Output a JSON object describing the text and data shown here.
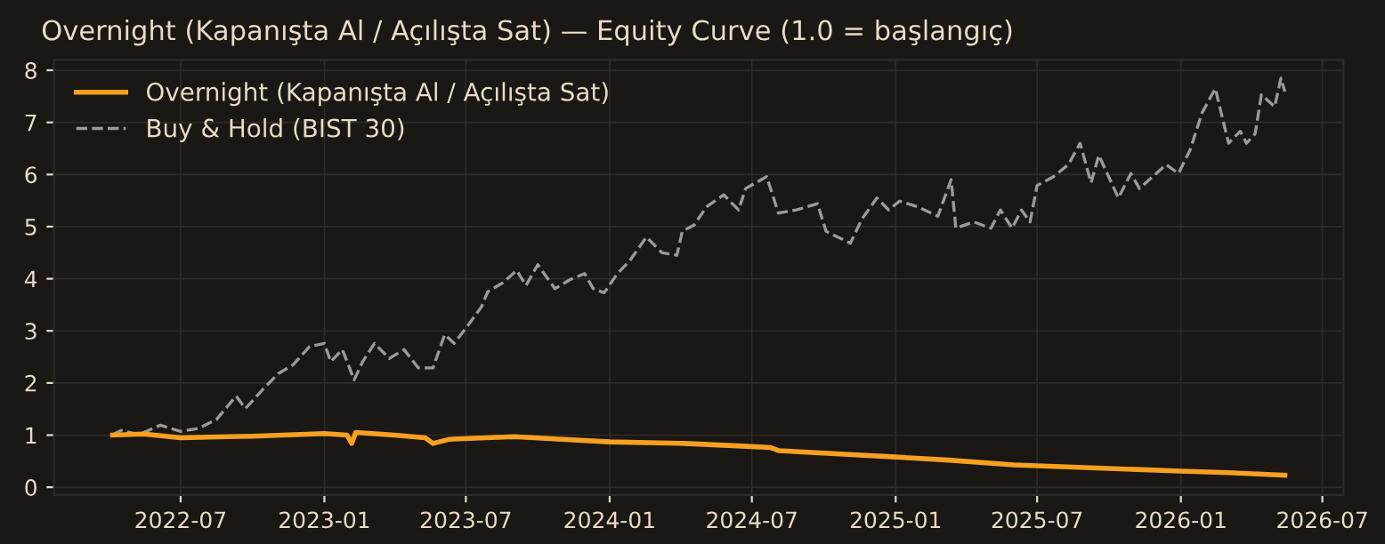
{
  "chart_data": {
    "type": "line",
    "title": "Overnight (Kapanışta Al / Açılışta Sat) — Equity Curve (1.0 = başlangıç)",
    "xlim": [
      "2022-01-20",
      "2026-07-28"
    ],
    "xticks": [
      {
        "value": "2022-07-01",
        "label": "2022-07"
      },
      {
        "value": "2023-01-01",
        "label": "2023-01"
      },
      {
        "value": "2023-07-01",
        "label": "2023-07"
      },
      {
        "value": "2024-01-01",
        "label": "2024-01"
      },
      {
        "value": "2024-07-01",
        "label": "2024-07"
      },
      {
        "value": "2025-01-01",
        "label": "2025-01"
      },
      {
        "value": "2025-07-01",
        "label": "2025-07"
      },
      {
        "value": "2026-01-01",
        "label": "2026-01"
      },
      {
        "value": "2026-07-01",
        "label": "2026-07"
      }
    ],
    "ylim": [
      -0.15,
      8.2
    ],
    "yticks": [
      0,
      1,
      2,
      3,
      4,
      5,
      6,
      7,
      8
    ],
    "grid": true,
    "legend": "top left",
    "series": [
      {
        "name": "Overnight (Kapanışta Al / Açılışta Sat)",
        "color": "#f5a020",
        "line_style": "solid",
        "x": [
          "2022-04-05",
          "2022-05-15",
          "2022-07-01",
          "2022-10-01",
          "2023-01-01",
          "2023-01-30",
          "2023-02-05",
          "2023-02-10",
          "2023-04-01",
          "2023-05-10",
          "2023-05-20",
          "2023-06-10",
          "2023-09-01",
          "2024-01-01",
          "2024-04-06",
          "2024-07-01",
          "2024-07-25",
          "2024-08-05",
          "2025-01-01",
          "2025-03-10",
          "2025-06-01",
          "2025-07-01",
          "2026-01-01",
          "2026-03-03",
          "2026-05-14"
        ],
        "values": [
          1.0,
          1.02,
          0.95,
          0.98,
          1.03,
          1.0,
          0.84,
          1.05,
          1.0,
          0.95,
          0.84,
          0.92,
          0.97,
          0.87,
          0.84,
          0.78,
          0.76,
          0.7,
          0.58,
          0.52,
          0.43,
          0.41,
          0.31,
          0.28,
          0.23
        ]
      },
      {
        "name": "Buy & Hold (BIST 30)",
        "color": "#9a9a9a",
        "line_style": "dashed",
        "x": [
          "2022-04-05",
          "2022-04-16",
          "2022-05-09",
          "2022-06-05",
          "2022-07-01",
          "2022-07-24",
          "2022-08-16",
          "2022-09-10",
          "2022-09-22",
          "2022-10-15",
          "2022-11-03",
          "2022-11-22",
          "2022-12-13",
          "2023-01-01",
          "2023-01-09",
          "2023-01-24",
          "2023-02-08",
          "2023-02-19",
          "2023-03-06",
          "2023-03-25",
          "2023-04-13",
          "2023-05-01",
          "2023-05-20",
          "2023-06-04",
          "2023-06-16",
          "2023-07-01",
          "2023-07-21",
          "2023-07-29",
          "2023-08-17",
          "2023-09-04",
          "2023-09-16",
          "2023-10-01",
          "2023-10-23",
          "2023-11-11",
          "2023-11-30",
          "2023-12-11",
          "2023-12-25",
          "2024-01-11",
          "2024-01-26",
          "2024-02-17",
          "2024-03-08",
          "2024-03-27",
          "2024-04-03",
          "2024-04-18",
          "2024-05-04",
          "2024-05-26",
          "2024-06-14",
          "2024-06-23",
          "2024-07-20",
          "2024-08-04",
          "2024-08-27",
          "2024-09-23",
          "2024-10-04",
          "2024-11-04",
          "2024-11-19",
          "2024-12-08",
          "2024-12-23",
          "2025-01-06",
          "2025-01-29",
          "2025-02-24",
          "2025-03-13",
          "2025-03-19",
          "2025-04-11",
          "2025-05-03",
          "2025-05-15",
          "2025-05-30",
          "2025-06-11",
          "2025-06-22",
          "2025-07-01",
          "2025-07-22",
          "2025-08-10",
          "2025-08-25",
          "2025-09-08",
          "2025-09-18",
          "2025-10-13",
          "2025-10-29",
          "2025-11-09",
          "2025-12-13",
          "2025-12-29",
          "2026-01-13",
          "2026-01-28",
          "2026-02-14",
          "2026-03-03",
          "2026-03-18",
          "2026-03-26",
          "2026-04-06",
          "2026-04-14",
          "2026-05-01",
          "2026-05-09",
          "2026-05-14"
        ],
        "values": [
          1.01,
          1.09,
          1.01,
          1.19,
          1.07,
          1.13,
          1.3,
          1.75,
          1.51,
          1.89,
          2.18,
          2.35,
          2.7,
          2.76,
          2.41,
          2.64,
          2.06,
          2.41,
          2.76,
          2.47,
          2.64,
          2.29,
          2.29,
          2.93,
          2.76,
          3.05,
          3.46,
          3.75,
          3.92,
          4.16,
          3.87,
          4.27,
          3.81,
          3.98,
          4.1,
          3.81,
          3.73,
          4.1,
          4.33,
          4.8,
          4.5,
          4.45,
          4.91,
          5.03,
          5.38,
          5.61,
          5.32,
          5.73,
          5.96,
          5.26,
          5.32,
          5.44,
          4.91,
          4.68,
          5.15,
          5.55,
          5.32,
          5.49,
          5.38,
          5.2,
          5.9,
          4.97,
          5.09,
          4.97,
          5.32,
          4.97,
          5.32,
          5.09,
          5.79,
          5.96,
          6.19,
          6.6,
          5.84,
          6.37,
          5.55,
          6.02,
          5.73,
          6.19,
          6.02,
          6.48,
          7.18,
          7.65,
          6.6,
          6.83,
          6.6,
          6.78,
          7.53,
          7.3,
          7.85,
          7.59
        ]
      }
    ]
  }
}
